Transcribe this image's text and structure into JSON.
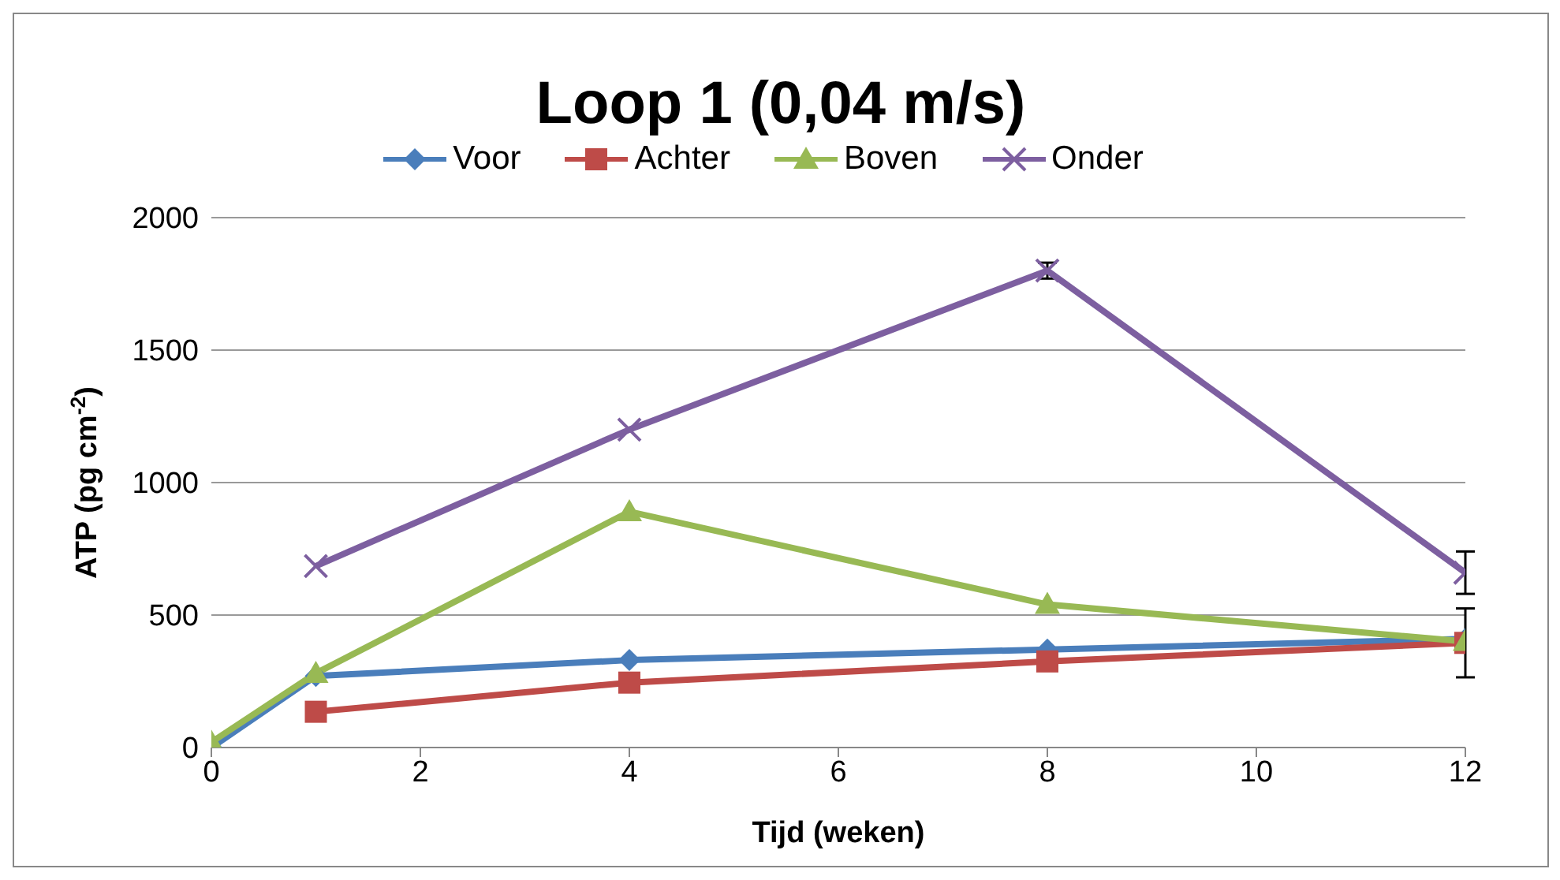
{
  "chart_data": {
    "type": "line",
    "title": "Loop 1 (0,04 m/s)",
    "xlabel": "Tijd (weken)",
    "ylabel": "ATP (pg cm$^{-2}$)",
    "x": [
      0,
      1,
      4,
      8,
      12
    ],
    "series": [
      {
        "name": "Voor",
        "color": "#4a7ebb",
        "marker": "diamond",
        "values": [
          0,
          270,
          330,
          370,
          410
        ]
      },
      {
        "name": "Achter",
        "color": "#be4b48",
        "marker": "square",
        "values": [
          null,
          135,
          245,
          325,
          395
        ],
        "errors": [
          null,
          null,
          null,
          null,
          130
        ]
      },
      {
        "name": "Boven",
        "color": "#98b954",
        "marker": "triangle",
        "values": [
          20,
          280,
          890,
          540,
          400
        ]
      },
      {
        "name": "Onder",
        "color": "#7d5fa0",
        "marker": "cross",
        "values": [
          null,
          685,
          1200,
          1800,
          660
        ],
        "errors": [
          null,
          null,
          null,
          30,
          80
        ]
      }
    ],
    "xlim": [
      0,
      12
    ],
    "xticks": [
      0,
      2,
      4,
      6,
      8,
      10,
      12
    ],
    "ylim": [
      0,
      2000
    ],
    "yticks": [
      0,
      500,
      1000,
      1500,
      2000
    ],
    "grid": "y",
    "legend": "top",
    "line_style": "solid"
  }
}
